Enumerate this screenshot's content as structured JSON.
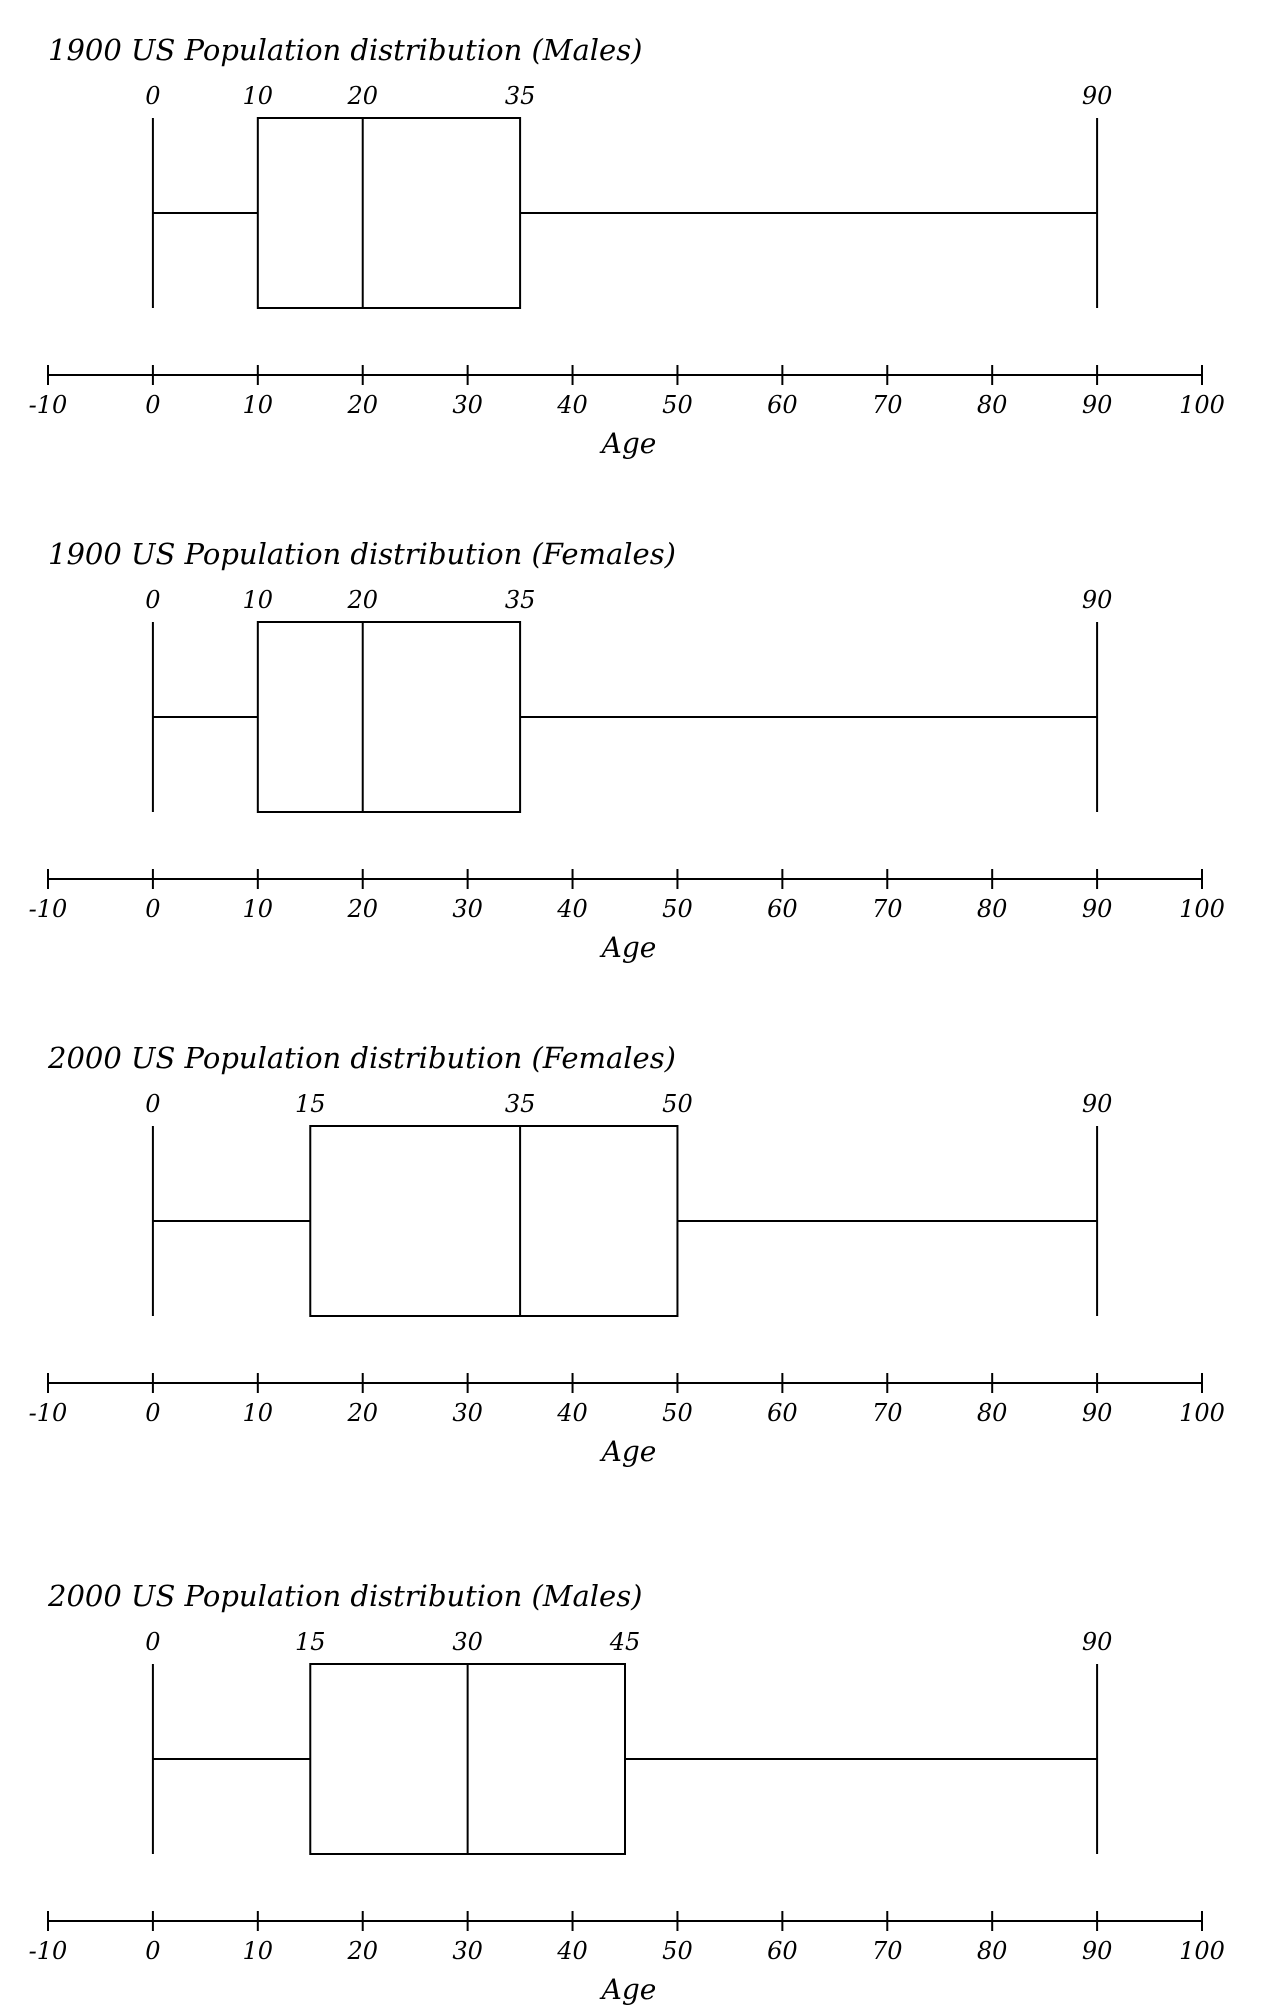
{
  "chart_data": [
    {
      "type": "box",
      "title": "1900 US Population distribution (Males)",
      "xlabel": "Age",
      "xlim": [
        -10,
        100
      ],
      "ticks": [
        -10,
        0,
        10,
        20,
        30,
        40,
        50,
        60,
        70,
        80,
        90,
        100
      ],
      "tick_labels": [
        "-10",
        "0",
        "10",
        "20",
        "30",
        "40",
        "50",
        "60",
        "70",
        "80",
        "90",
        "100"
      ],
      "box": {
        "min": 0,
        "q1": 10,
        "median": 20,
        "q3": 35,
        "max": 90
      },
      "value_labels": [
        "0",
        "10",
        "20",
        "35",
        "90"
      ]
    },
    {
      "type": "box",
      "title": "1900 US Population distribution (Females)",
      "xlabel": "Age",
      "xlim": [
        -10,
        100
      ],
      "ticks": [
        -10,
        0,
        10,
        20,
        30,
        40,
        50,
        60,
        70,
        80,
        90,
        100
      ],
      "tick_labels": [
        "-10",
        "0",
        "10",
        "20",
        "30",
        "40",
        "50",
        "60",
        "70",
        "80",
        "90",
        "100"
      ],
      "box": {
        "min": 0,
        "q1": 10,
        "median": 20,
        "q3": 35,
        "max": 90
      },
      "value_labels": [
        "0",
        "10",
        "20",
        "35",
        "90"
      ]
    },
    {
      "type": "box",
      "title": "2000 US Population distribution (Females)",
      "xlabel": "Age",
      "xlim": [
        -10,
        100
      ],
      "ticks": [
        -10,
        0,
        10,
        20,
        30,
        40,
        50,
        60,
        70,
        80,
        90,
        100
      ],
      "tick_labels": [
        "-10",
        "0",
        "10",
        "20",
        "30",
        "40",
        "50",
        "60",
        "70",
        "80",
        "90",
        "100"
      ],
      "box": {
        "min": 0,
        "q1": 15,
        "median": 35,
        "q3": 50,
        "max": 90
      },
      "value_labels": [
        "0",
        "15",
        "35",
        "50",
        "90"
      ]
    },
    {
      "type": "box",
      "title": "2000 US Population distribution (Males)",
      "xlabel": "Age",
      "xlim": [
        -10,
        100
      ],
      "ticks": [
        -10,
        0,
        10,
        20,
        30,
        40,
        50,
        60,
        70,
        80,
        90,
        100
      ],
      "tick_labels": [
        "-10",
        "0",
        "10",
        "20",
        "30",
        "40",
        "50",
        "60",
        "70",
        "80",
        "90",
        "100"
      ],
      "box": {
        "min": 0,
        "q1": 15,
        "median": 30,
        "q3": 45,
        "max": 90
      },
      "value_labels": [
        "0",
        "15",
        "30",
        "45",
        "90"
      ]
    }
  ]
}
